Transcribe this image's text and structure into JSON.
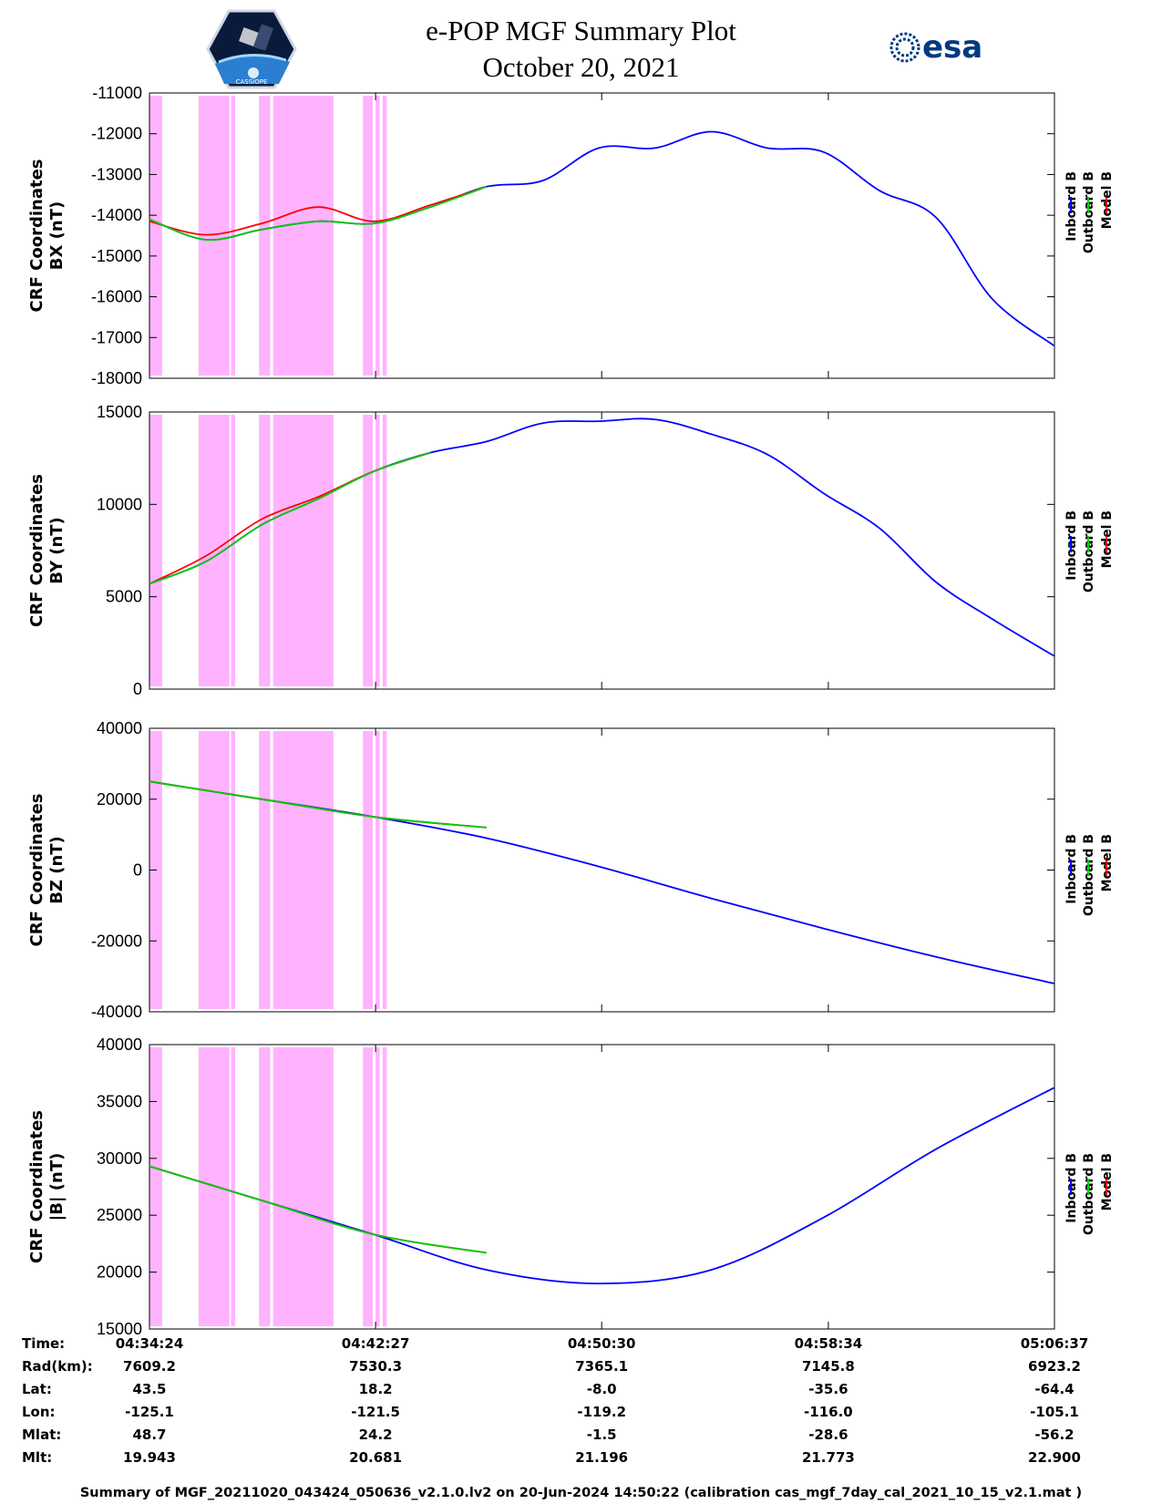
{
  "title": "e-POP MGF Summary Plot",
  "subtitle": "October 20, 2021",
  "logos": {
    "left": "cassiope-logo",
    "right": "esa-logo",
    "esa_text": "esa",
    "cassiope_text": "CASSIOPE"
  },
  "colors": {
    "inboard": "#0000ff",
    "outboard": "#00cc00",
    "model": "#ff0000",
    "highlight": "#ffb3ff"
  },
  "legend": [
    "Inboard B",
    "Outboard B",
    "Model B"
  ],
  "chart_data": [
    {
      "type": "line",
      "ylabel": [
        "CRF Coordinates",
        "BX (nT)"
      ],
      "ylim": [
        -18000,
        -11000
      ],
      "yticks": [
        "-11000",
        "-12000",
        "-13000",
        "-14000",
        "-15000",
        "-16000",
        "-17000",
        "-18000"
      ],
      "ytick_values": [
        -11000,
        -12000,
        -13000,
        -14000,
        -15000,
        -16000,
        -17000,
        -18000
      ],
      "x_minutes": [
        0,
        2,
        4,
        6,
        8,
        10,
        12,
        14,
        16,
        18,
        20,
        22,
        24,
        26,
        28,
        30,
        32.2
      ],
      "series": [
        {
          "name": "Inboard B",
          "values": [
            -14100,
            -14600,
            -14350,
            -14150,
            -14200,
            -13800,
            -13300,
            -13150,
            -12350,
            -12350,
            -11950,
            -12350,
            -12450,
            -13400,
            -14050,
            -16050,
            -17200
          ]
        },
        {
          "name": "Outboard B",
          "values": [
            -14100,
            -14600,
            -14350,
            -14150,
            -14200,
            -13800,
            -13300
          ]
        },
        {
          "name": "Model B",
          "values": [
            -14150,
            -14480,
            -14200,
            -13800,
            -14150,
            -13750,
            -13300
          ]
        }
      ]
    },
    {
      "type": "line",
      "ylabel": [
        "CRF Coordinates",
        "BY (nT)"
      ],
      "ylim": [
        0,
        15000
      ],
      "yticks": [
        "15000",
        "10000",
        "5000",
        "0"
      ],
      "ytick_values": [
        15000,
        10000,
        5000,
        0
      ],
      "x_minutes": [
        0,
        2,
        4,
        6,
        8,
        10,
        12,
        14,
        16,
        18,
        20,
        22,
        24,
        26,
        28,
        30,
        32.2
      ],
      "series": [
        {
          "name": "Inboard B",
          "values": [
            5700,
            6900,
            8900,
            10300,
            11800,
            12800,
            13400,
            14400,
            14500,
            14600,
            13800,
            12700,
            10600,
            8700,
            5800,
            3800,
            1800
          ]
        },
        {
          "name": "Outboard B",
          "values": [
            5700,
            6900,
            8900,
            10300,
            11800,
            12800
          ]
        },
        {
          "name": "Model B",
          "values": [
            5700,
            7200,
            9200,
            10400,
            11800,
            12800
          ]
        }
      ]
    },
    {
      "type": "line",
      "ylabel": [
        "CRF Coordinates",
        "BZ (nT)"
      ],
      "ylim": [
        -40000,
        40000
      ],
      "yticks": [
        "40000",
        "20000",
        "0",
        "-20000",
        "-40000"
      ],
      "ytick_values": [
        40000,
        20000,
        0,
        -20000,
        -40000
      ],
      "x_minutes": [
        0,
        4,
        8,
        12,
        16,
        20,
        24,
        28,
        32.2
      ],
      "series": [
        {
          "name": "Inboard B",
          "values": [
            25000,
            20000,
            15000,
            9000,
            1000,
            -8000,
            -16500,
            -24500,
            -32000
          ]
        },
        {
          "name": "Outboard B",
          "values": [
            25000,
            20000,
            15000,
            12000
          ]
        },
        {
          "name": "Model B",
          "values": [
            25000,
            20000,
            15000,
            12000
          ]
        }
      ]
    },
    {
      "type": "line",
      "ylabel": [
        "CRF Coordinates",
        "|B| (nT)"
      ],
      "ylim": [
        15000,
        40000
      ],
      "yticks": [
        "40000",
        "35000",
        "30000",
        "25000",
        "20000",
        "15000"
      ],
      "ytick_values": [
        40000,
        35000,
        30000,
        25000,
        20000,
        15000
      ],
      "x_minutes": [
        0,
        4,
        8,
        12,
        16,
        20,
        24,
        28,
        32.2
      ],
      "series": [
        {
          "name": "Inboard B",
          "values": [
            29300,
            26300,
            23300,
            20200,
            19000,
            20200,
            24800,
            30800,
            36200
          ]
        },
        {
          "name": "Outboard B",
          "values": [
            29300,
            26300,
            23300,
            21700
          ]
        },
        {
          "name": "Model B",
          "values": [
            29300,
            26300,
            23300,
            21700
          ]
        }
      ]
    }
  ],
  "x_axis": {
    "xlim_minutes": [
      0,
      32.22
    ],
    "tick_minutes": [
      0,
      8.05,
      16.1,
      24.17,
      32.22
    ]
  },
  "highlight_intervals_minutes": [
    [
      0,
      0.45
    ],
    [
      1.75,
      2.85
    ],
    [
      2.9,
      3.05
    ],
    [
      3.9,
      4.3
    ],
    [
      4.4,
      6.55
    ],
    [
      7.6,
      7.95
    ],
    [
      8.05,
      8.2
    ],
    [
      8.3,
      8.45
    ]
  ],
  "info_table": {
    "keys": [
      "Time:",
      "Rad(km):",
      "Lat:",
      "Lon:",
      "Mlat:",
      "Mlt:"
    ],
    "columns": [
      [
        "04:34:24",
        "7609.2",
        "43.5",
        "-125.1",
        "48.7",
        "19.943"
      ],
      [
        "04:42:27",
        "7530.3",
        "18.2",
        "-121.5",
        "24.2",
        "20.681"
      ],
      [
        "04:50:30",
        "7365.1",
        "-8.0",
        "-119.2",
        "-1.5",
        "21.196"
      ],
      [
        "04:58:34",
        "7145.8",
        "-35.6",
        "-116.0",
        "-28.6",
        "21.773"
      ],
      [
        "05:06:37",
        "6923.2",
        "-64.4",
        "-105.1",
        "-56.2",
        "22.900"
      ]
    ]
  },
  "footer": "Summary of MGF_20211020_043424_050636_v2.1.0.lv2 on 20-Jun-2024 14:50:22 (calibration cas_mgf_7day_cal_2021_10_15_v2.1.mat )"
}
